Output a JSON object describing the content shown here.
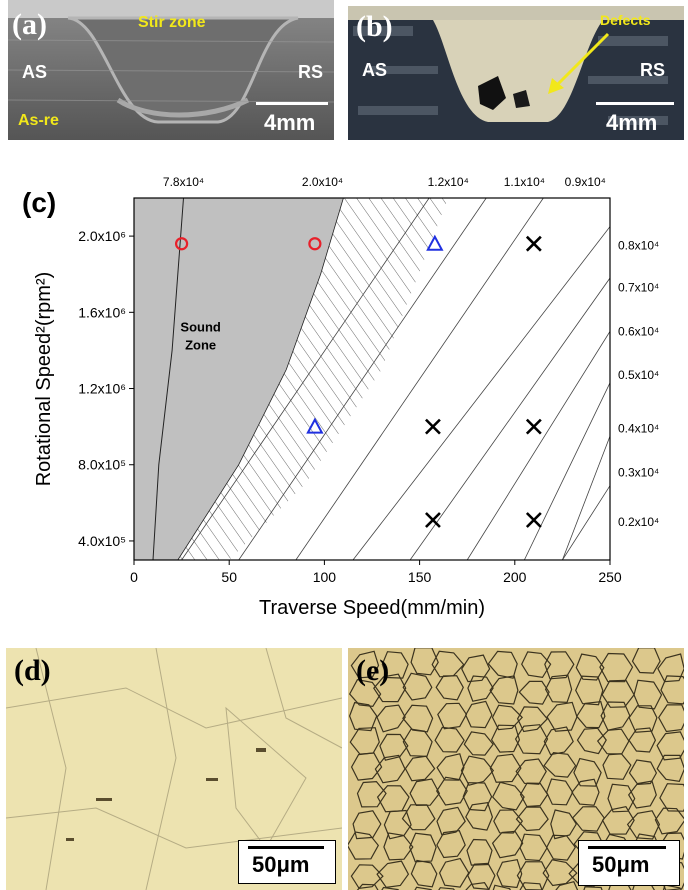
{
  "panel_a": {
    "letter": "(a)",
    "stir_zone": "Stir zone",
    "as_label": "AS",
    "rs_label": "RS",
    "asre_label": "As-re",
    "scale": "4mm"
  },
  "panel_b": {
    "letter": "(b)",
    "defects": "Defects",
    "as_label": "AS",
    "rs_label": "RS",
    "scale": "4mm"
  },
  "panel_c": {
    "letter": "(c)"
  },
  "panel_d": {
    "letter": "(d)",
    "scale": "50μm"
  },
  "panel_e": {
    "letter": "(e)",
    "scale": "50μm"
  },
  "colors": {
    "sound_zone_fill": "#c0c0c0",
    "circle_marker": "#e8202a",
    "triangle_marker": "#2030e0",
    "cross_marker": "#000000"
  },
  "chart_data": {
    "type": "scatter",
    "xlabel": "Traverse Speed(mm/min)",
    "ylabel": "Rotational Speed²(rpm²)",
    "xlim": [
      0,
      250
    ],
    "ylim": [
      300000,
      2200000
    ],
    "x_ticks": [
      "0",
      "50",
      "100",
      "150",
      "200",
      "250"
    ],
    "y_ticks": [
      {
        "v": 400000,
        "label": "4.0x10⁵"
      },
      {
        "v": 800000,
        "label": "8.0x10⁵"
      },
      {
        "v": 1200000,
        "label": "1.2x10⁶"
      },
      {
        "v": 1600000,
        "label": "1.6x10⁶"
      },
      {
        "v": 2000000,
        "label": "2.0x10⁶"
      }
    ],
    "region_label": "Sound\nZone",
    "top_labels": [
      {
        "x": 26,
        "label": "7.8x10⁴"
      },
      {
        "x": 99,
        "label": "2.0x10⁴"
      },
      {
        "x": 165,
        "label": "1.2x10⁴"
      },
      {
        "x": 205,
        "label": "1.1x10⁴"
      },
      {
        "x": 237,
        "label": "0.9x10⁴"
      }
    ],
    "right_labels": [
      {
        "y": 1950000,
        "label": "0.8x10⁴"
      },
      {
        "y": 1730000,
        "label": "0.7x10⁴"
      },
      {
        "y": 1500000,
        "label": "0.6x10⁴"
      },
      {
        "y": 1270000,
        "label": "0.5x10⁴"
      },
      {
        "y": 990000,
        "label": "0.4x10⁴"
      },
      {
        "y": 760000,
        "label": "0.3x10⁴"
      },
      {
        "y": 500000,
        "label": "0.2x10⁴"
      }
    ],
    "series": [
      {
        "marker": "circle",
        "points": [
          [
            25,
            1960000
          ],
          [
            95,
            1960000
          ]
        ]
      },
      {
        "marker": "triangle",
        "points": [
          [
            158,
            1960000
          ],
          [
            95,
            1000000
          ]
        ]
      },
      {
        "marker": "cross",
        "points": [
          [
            210,
            1960000
          ],
          [
            157,
            1000000
          ],
          [
            210,
            1000000
          ],
          [
            157,
            510000
          ],
          [
            210,
            510000
          ]
        ]
      }
    ]
  }
}
